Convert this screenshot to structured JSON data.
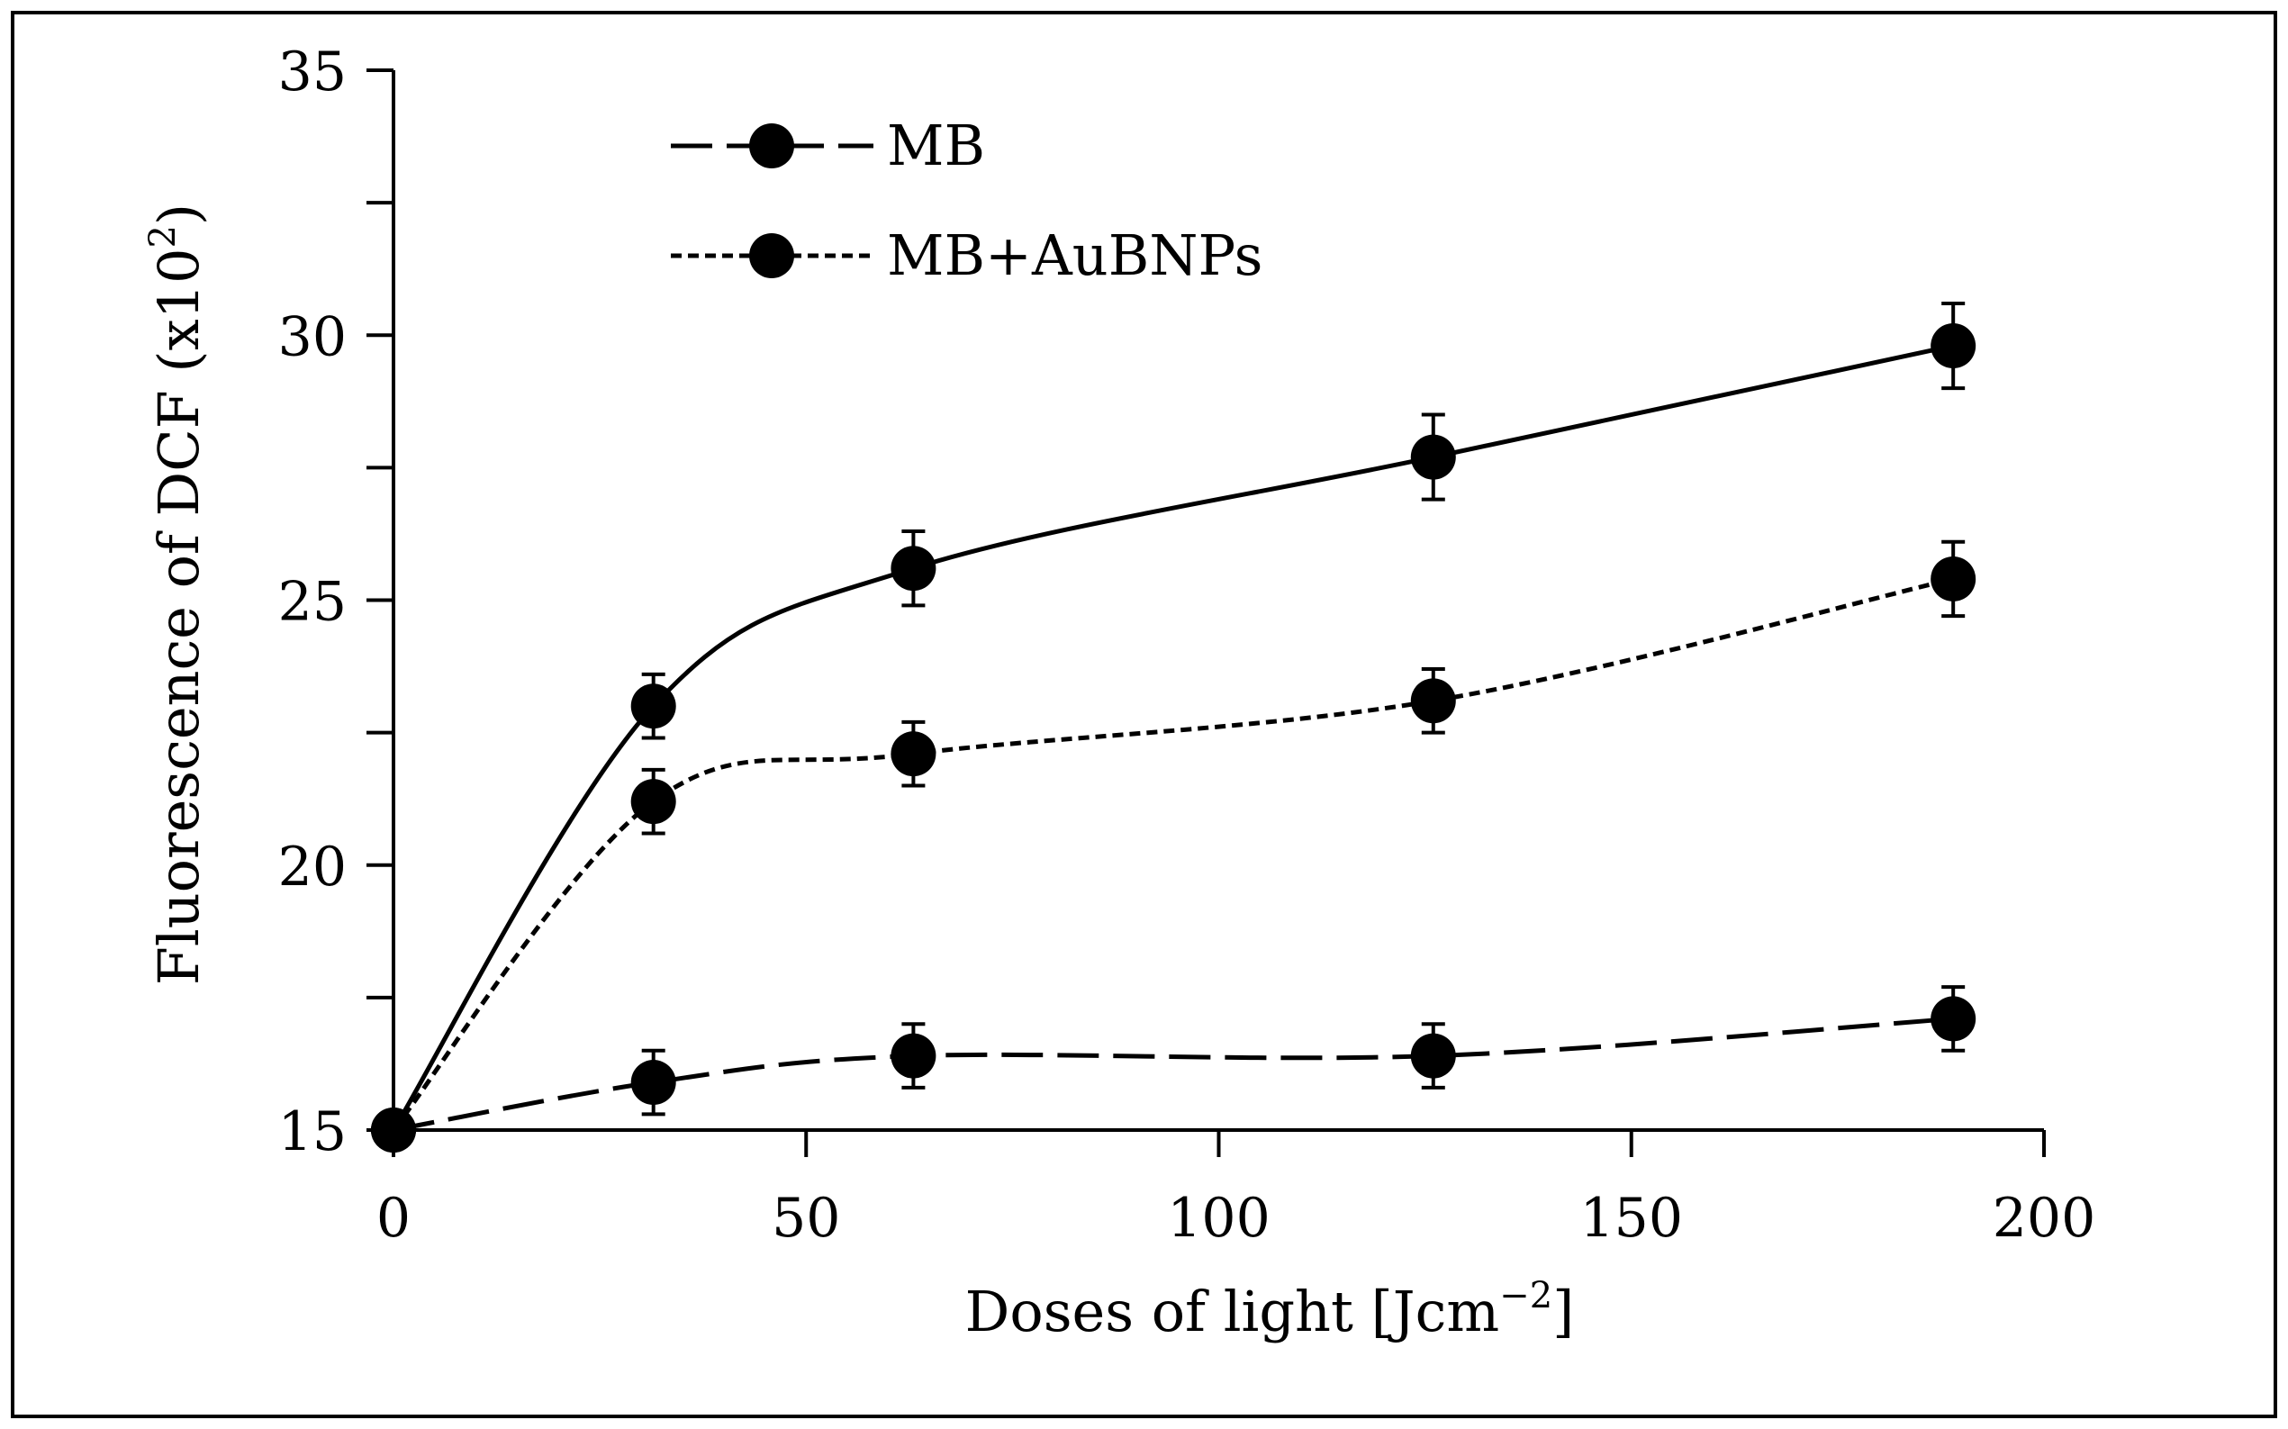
{
  "chart_data": {
    "type": "line",
    "title": "",
    "xlabel": "Doses of light [Jcm",
    "xlabel_sup": "−2",
    "xlabel_end": "]",
    "ylabel": "Fluorescence of DCF (x10",
    "ylabel_sup": "2",
    "ylabel_end": ")",
    "xlim": [
      0,
      200
    ],
    "ylim": [
      15,
      35
    ],
    "x_ticks": [
      0,
      50,
      100,
      150,
      200
    ],
    "x_tick_labels": [
      "0",
      "50",
      "100",
      "150",
      "200"
    ],
    "y_ticks": [
      15,
      20,
      25,
      30,
      35
    ],
    "y_tick_labels": [
      "15",
      "20",
      "25",
      "30",
      "35"
    ],
    "y_minor_step": 2.5,
    "x": [
      0,
      31.5,
      63,
      126,
      189
    ],
    "legend_position": "top-left",
    "series": [
      {
        "name": "MB",
        "values": [
          15.0,
          15.9,
          16.4,
          16.4,
          17.1
        ],
        "errors": [
          0.3,
          0.6,
          0.6,
          0.6,
          0.6
        ],
        "line_style": "long-dash",
        "in_legend": true
      },
      {
        "name": "MB+AuBNPs",
        "values": [
          15.0,
          21.2,
          22.1,
          23.1,
          25.4
        ],
        "errors": [
          0.3,
          0.6,
          0.6,
          0.6,
          0.7
        ],
        "line_style": "dotted",
        "in_legend": true
      },
      {
        "values": [
          15.0,
          23.0,
          25.6,
          27.7,
          29.8
        ],
        "errors": [
          0.3,
          0.6,
          0.7,
          0.8,
          0.8
        ],
        "line_style": "solid",
        "in_legend": false
      }
    ],
    "colors": {
      "line": "#000000",
      "marker": "#000000",
      "frame": "#000000"
    }
  }
}
